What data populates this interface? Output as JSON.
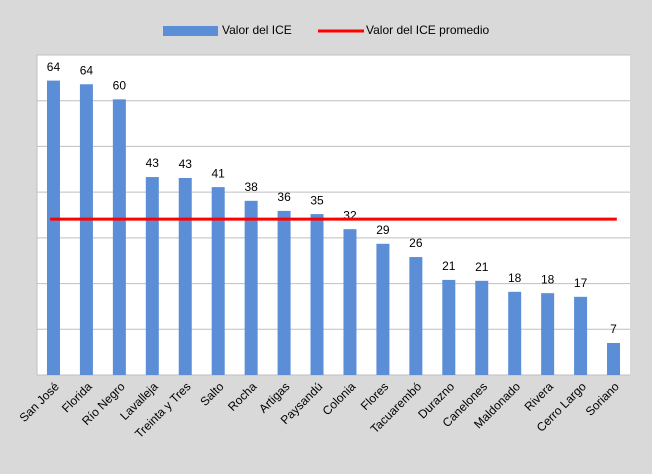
{
  "chart_data": {
    "type": "bar",
    "categories": [
      "San José",
      "Florida",
      "Río Negro",
      "Lavalleja",
      "Treinta y Tres",
      "Salto",
      "Rocha",
      "Artigas",
      "Paysandú",
      "Colonia",
      "Flores",
      "Tacuarembó",
      "Durazno",
      "Canelones",
      "Maldonado",
      "Rivera",
      "Cerro Largo",
      "Soriano"
    ],
    "series": [
      {
        "name": "Valor del ICE",
        "color": "#5b8ed6",
        "values": [
          64.4,
          63.6,
          60.3,
          43.3,
          43.1,
          41.1,
          38.1,
          35.9,
          35.2,
          31.9,
          28.7,
          25.8,
          20.8,
          20.6,
          18.2,
          17.9,
          17.1,
          7.0
        ],
        "value_labels": [
          "64",
          "64",
          "60",
          "43",
          "43",
          "41",
          "38",
          "36",
          "35",
          "32",
          "29",
          "26",
          "21",
          "21",
          "18",
          "18",
          "17",
          "7"
        ]
      }
    ],
    "average": {
      "name": "Valor del ICE promedio",
      "color": "#ff0000",
      "value": 34.1
    },
    "ylim": [
      0,
      70
    ],
    "yticks": [
      0,
      10,
      20,
      30,
      40,
      50,
      60,
      70
    ],
    "grid": true
  }
}
